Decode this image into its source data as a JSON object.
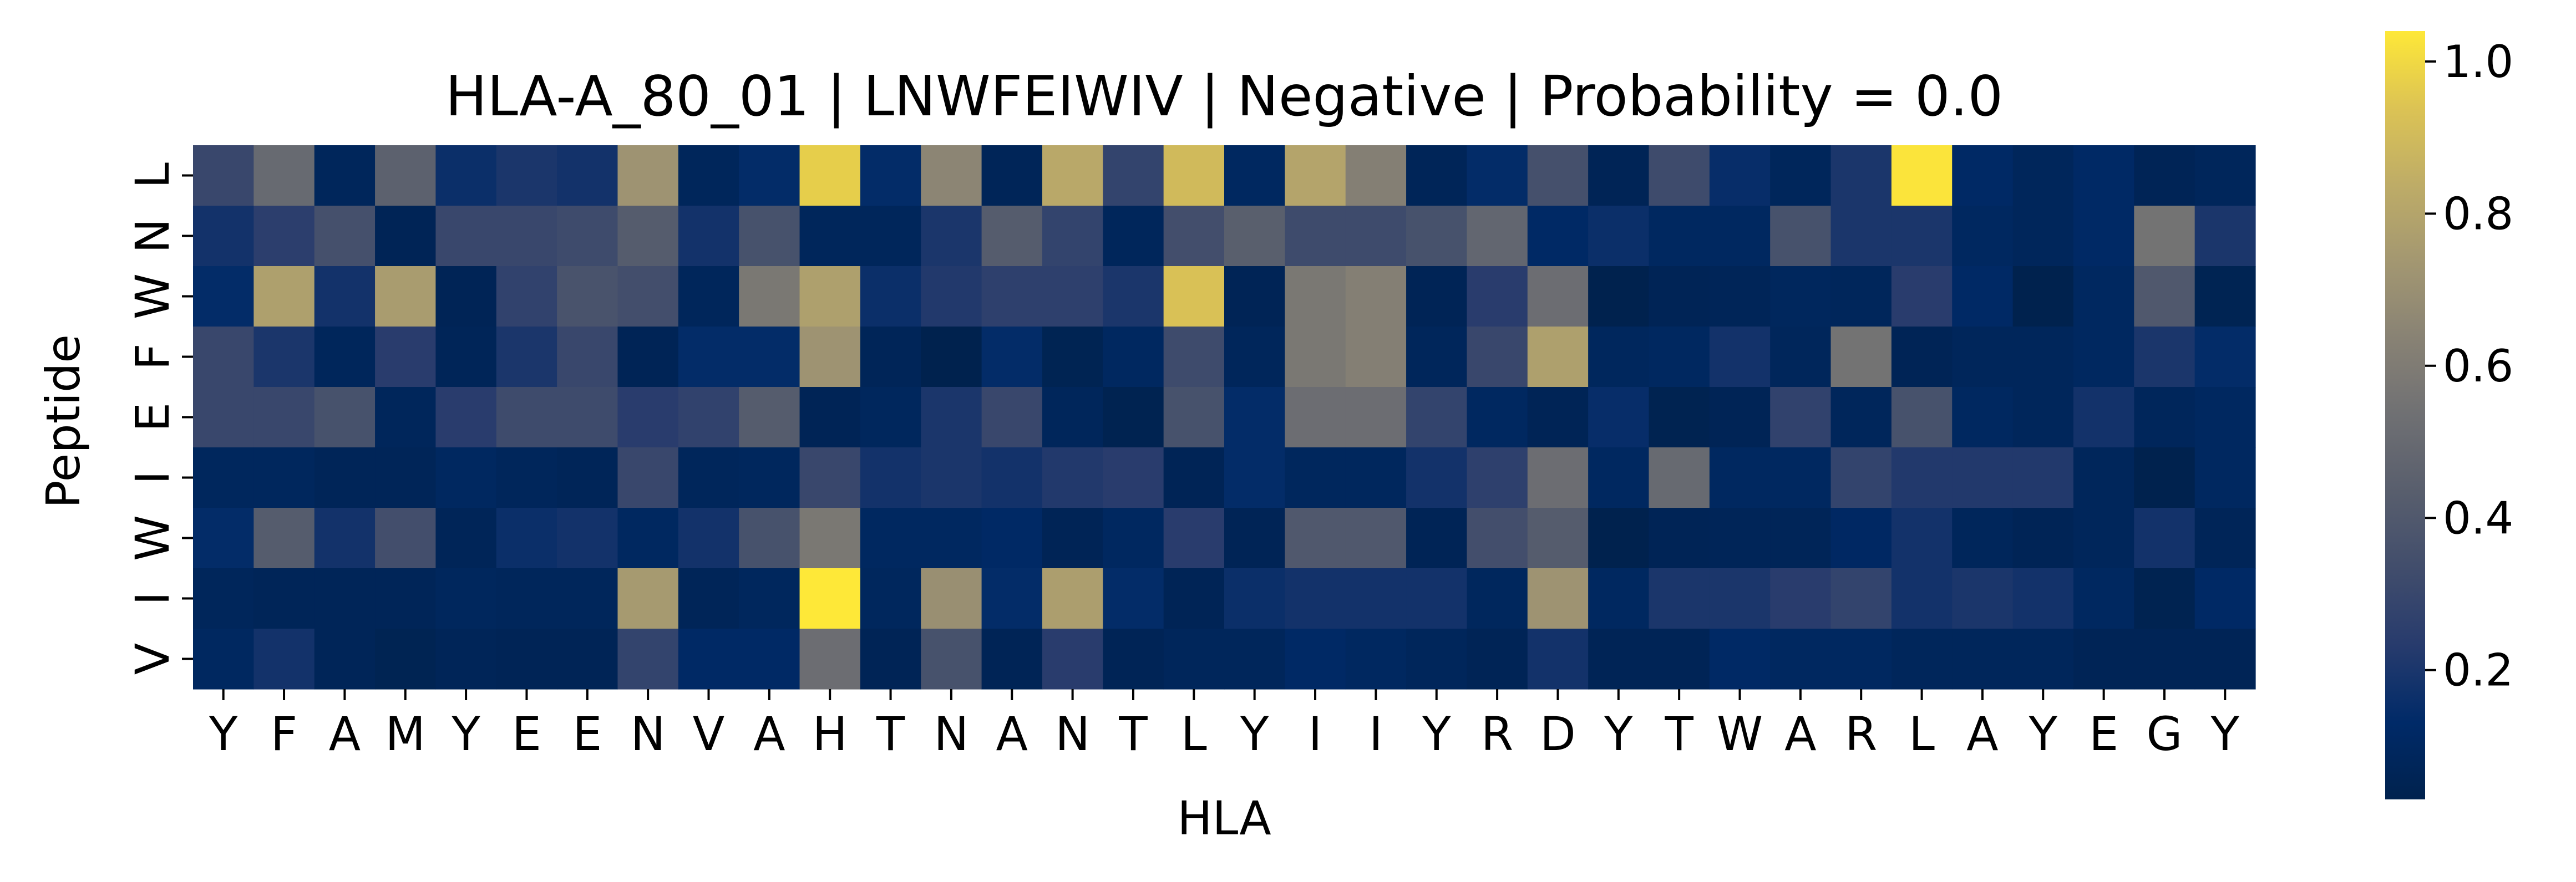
{
  "chart_data": {
    "type": "heatmap",
    "title": "HLA-A_80_01 | LNWFEIWIV | Negative | Probability = 0.0",
    "xlabel": "HLA",
    "ylabel": "Peptide",
    "x_categories": [
      "Y",
      "F",
      "A",
      "M",
      "Y",
      "E",
      "E",
      "N",
      "V",
      "A",
      "H",
      "T",
      "N",
      "A",
      "N",
      "T",
      "L",
      "Y",
      "I",
      "I",
      "Y",
      "R",
      "D",
      "Y",
      "T",
      "W",
      "A",
      "R",
      "L",
      "A",
      "Y",
      "E",
      "G",
      "Y"
    ],
    "y_categories": [
      "L",
      "N",
      "W",
      "F",
      "E",
      "I",
      "W",
      "I",
      "V"
    ],
    "values": [
      [
        0.3,
        0.5,
        0.08,
        0.45,
        0.16,
        0.2,
        0.18,
        0.72,
        0.08,
        0.14,
        0.97,
        0.14,
        0.65,
        0.07,
        0.82,
        0.28,
        0.9,
        0.1,
        0.8,
        0.62,
        0.07,
        0.14,
        0.35,
        0.06,
        0.32,
        0.15,
        0.08,
        0.2,
        1.03,
        0.12,
        0.08,
        0.12,
        0.06,
        0.08
      ],
      [
        0.18,
        0.25,
        0.35,
        0.06,
        0.3,
        0.3,
        0.32,
        0.42,
        0.18,
        0.36,
        0.08,
        0.08,
        0.2,
        0.42,
        0.28,
        0.08,
        0.34,
        0.44,
        0.32,
        0.32,
        0.36,
        0.48,
        0.12,
        0.16,
        0.1,
        0.1,
        0.36,
        0.2,
        0.2,
        0.1,
        0.08,
        0.12,
        0.55,
        0.2
      ],
      [
        0.14,
        0.78,
        0.18,
        0.76,
        0.06,
        0.27,
        0.37,
        0.34,
        0.08,
        0.58,
        0.78,
        0.16,
        0.22,
        0.26,
        0.26,
        0.2,
        0.93,
        0.06,
        0.58,
        0.62,
        0.06,
        0.24,
        0.52,
        0.03,
        0.06,
        0.07,
        0.09,
        0.08,
        0.24,
        0.12,
        0.03,
        0.1,
        0.4,
        0.05
      ],
      [
        0.3,
        0.2,
        0.08,
        0.24,
        0.07,
        0.2,
        0.3,
        0.06,
        0.14,
        0.14,
        0.72,
        0.07,
        0.03,
        0.14,
        0.05,
        0.1,
        0.32,
        0.08,
        0.58,
        0.62,
        0.08,
        0.3,
        0.78,
        0.09,
        0.1,
        0.18,
        0.08,
        0.55,
        0.06,
        0.08,
        0.08,
        0.1,
        0.2,
        0.14
      ],
      [
        0.3,
        0.3,
        0.36,
        0.08,
        0.24,
        0.32,
        0.32,
        0.24,
        0.27,
        0.42,
        0.06,
        0.09,
        0.2,
        0.3,
        0.08,
        0.04,
        0.36,
        0.14,
        0.52,
        0.52,
        0.28,
        0.1,
        0.06,
        0.15,
        0.04,
        0.06,
        0.27,
        0.08,
        0.36,
        0.1,
        0.08,
        0.18,
        0.08,
        0.1
      ],
      [
        0.09,
        0.09,
        0.07,
        0.07,
        0.1,
        0.08,
        0.07,
        0.3,
        0.08,
        0.09,
        0.3,
        0.18,
        0.2,
        0.18,
        0.22,
        0.24,
        0.06,
        0.14,
        0.09,
        0.09,
        0.18,
        0.26,
        0.52,
        0.1,
        0.5,
        0.1,
        0.1,
        0.28,
        0.22,
        0.22,
        0.22,
        0.08,
        0.03,
        0.1
      ],
      [
        0.14,
        0.42,
        0.18,
        0.34,
        0.07,
        0.16,
        0.18,
        0.1,
        0.18,
        0.36,
        0.58,
        0.1,
        0.1,
        0.12,
        0.06,
        0.1,
        0.24,
        0.06,
        0.4,
        0.4,
        0.06,
        0.34,
        0.42,
        0.03,
        0.06,
        0.07,
        0.07,
        0.11,
        0.18,
        0.08,
        0.06,
        0.08,
        0.18,
        0.07
      ],
      [
        0.08,
        0.07,
        0.07,
        0.07,
        0.09,
        0.08,
        0.08,
        0.75,
        0.07,
        0.09,
        1.04,
        0.09,
        0.7,
        0.14,
        0.77,
        0.14,
        0.06,
        0.16,
        0.18,
        0.18,
        0.18,
        0.09,
        0.72,
        0.1,
        0.2,
        0.2,
        0.24,
        0.28,
        0.18,
        0.2,
        0.18,
        0.1,
        0.04,
        0.12
      ],
      [
        0.1,
        0.18,
        0.07,
        0.05,
        0.07,
        0.06,
        0.06,
        0.28,
        0.12,
        0.12,
        0.52,
        0.06,
        0.36,
        0.06,
        0.24,
        0.06,
        0.08,
        0.08,
        0.12,
        0.1,
        0.08,
        0.06,
        0.18,
        0.06,
        0.06,
        0.12,
        0.1,
        0.1,
        0.08,
        0.08,
        0.08,
        0.06,
        0.06,
        0.06
      ]
    ],
    "colorbar": {
      "colormap": "cividis",
      "vmin": 0.03,
      "vmax": 1.04,
      "ticks": [
        0.2,
        0.4,
        0.6,
        0.8,
        1.0
      ],
      "tick_labels": [
        "0.2",
        "0.4",
        "0.6",
        "0.8",
        "1.0"
      ]
    },
    "grid": false
  }
}
